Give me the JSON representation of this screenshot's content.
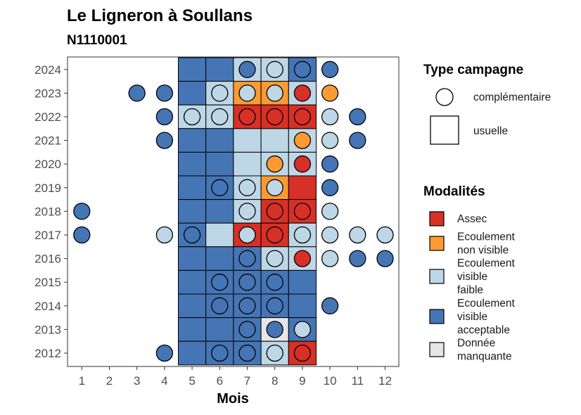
{
  "chart_data": {
    "type": "heatmap",
    "title": "Le Ligneron à Soullans",
    "subtitle": "N1110001",
    "xlabel": "Mois",
    "ylabel": "",
    "x_ticks": [
      "1",
      "2",
      "3",
      "4",
      "5",
      "6",
      "7",
      "8",
      "9",
      "10",
      "11",
      "12"
    ],
    "y_ticks": [
      "2012",
      "2013",
      "2014",
      "2015",
      "2016",
      "2017",
      "2018",
      "2019",
      "2020",
      "2021",
      "2022",
      "2023",
      "2024"
    ],
    "grid": false,
    "colors": {
      "assec": "#d73027",
      "non_visible": "#fd9a32",
      "faible": "#bed7e6",
      "acceptable": "#4575b4",
      "manquante": "#e6e6e6"
    },
    "legend": {
      "type_title": "Type campagne",
      "type_items": [
        {
          "key": "complementaire",
          "label": "complémentaire",
          "shape": "circle"
        },
        {
          "key": "usuelle",
          "label": "usuelle",
          "shape": "square"
        }
      ],
      "mod_title": "Modalités",
      "mod_items": [
        {
          "key": "assec",
          "lines": [
            "Assec"
          ]
        },
        {
          "key": "non_visible",
          "lines": [
            "Ecoulement",
            "non visible"
          ]
        },
        {
          "key": "faible",
          "lines": [
            "Ecoulement",
            "visible",
            "faible"
          ]
        },
        {
          "key": "acceptable",
          "lines": [
            "Ecoulement",
            "visible",
            "acceptable"
          ]
        },
        {
          "key": "manquante",
          "lines": [
            "Donnée",
            "manquante"
          ]
        }
      ],
      "placement": "right"
    },
    "usuelle": [
      {
        "year": 2024,
        "months": {
          "5": "acceptable",
          "6": "acceptable",
          "7": "faible",
          "8": "faible",
          "9": "acceptable"
        }
      },
      {
        "year": 2023,
        "months": {
          "5": "acceptable",
          "6": "faible",
          "7": "non_visible",
          "8": "non_visible",
          "9": "faible"
        }
      },
      {
        "year": 2022,
        "months": {
          "5": "faible",
          "6": "faible",
          "7": "assec",
          "8": "assec",
          "9": "assec"
        }
      },
      {
        "year": 2021,
        "months": {
          "5": "acceptable",
          "6": "acceptable",
          "7": "faible",
          "8": "faible",
          "9": "faible"
        }
      },
      {
        "year": 2020,
        "months": {
          "5": "acceptable",
          "6": "acceptable",
          "7": "faible",
          "8": "faible",
          "9": "faible"
        }
      },
      {
        "year": 2019,
        "months": {
          "5": "acceptable",
          "6": "acceptable",
          "7": "faible",
          "8": "non_visible",
          "9": "assec"
        }
      },
      {
        "year": 2018,
        "months": {
          "5": "acceptable",
          "6": "acceptable",
          "7": "faible",
          "8": "assec",
          "9": "assec"
        }
      },
      {
        "year": 2017,
        "months": {
          "5": "acceptable",
          "6": "faible",
          "7": "assec",
          "8": "assec",
          "9": "faible"
        }
      },
      {
        "year": 2016,
        "months": {
          "5": "acceptable",
          "6": "acceptable",
          "7": "acceptable",
          "8": "faible",
          "9": "faible"
        }
      },
      {
        "year": 2015,
        "months": {
          "5": "acceptable",
          "6": "acceptable",
          "7": "acceptable",
          "8": "acceptable",
          "9": "acceptable"
        }
      },
      {
        "year": 2014,
        "months": {
          "5": "acceptable",
          "6": "acceptable",
          "7": "acceptable",
          "8": "acceptable",
          "9": "acceptable"
        }
      },
      {
        "year": 2013,
        "months": {
          "5": "acceptable",
          "6": "acceptable",
          "7": "acceptable",
          "8": "manquante",
          "9": "acceptable"
        }
      },
      {
        "year": 2012,
        "months": {
          "5": "acceptable",
          "6": "acceptable",
          "7": "acceptable",
          "8": "faible",
          "9": "assec"
        }
      }
    ],
    "complementaire": [
      {
        "year": 2024,
        "month": 7,
        "mod": "acceptable"
      },
      {
        "year": 2024,
        "month": 8,
        "mod": "faible"
      },
      {
        "year": 2024,
        "month": 9,
        "mod": "acceptable"
      },
      {
        "year": 2024,
        "month": 10,
        "mod": "acceptable"
      },
      {
        "year": 2023,
        "month": 3,
        "mod": "acceptable"
      },
      {
        "year": 2023,
        "month": 4,
        "mod": "acceptable"
      },
      {
        "year": 2023,
        "month": 6,
        "mod": "faible"
      },
      {
        "year": 2023,
        "month": 7,
        "mod": "faible"
      },
      {
        "year": 2023,
        "month": 8,
        "mod": "faible"
      },
      {
        "year": 2023,
        "month": 9,
        "mod": "assec"
      },
      {
        "year": 2023,
        "month": 10,
        "mod": "non_visible"
      },
      {
        "year": 2022,
        "month": 4,
        "mod": "acceptable"
      },
      {
        "year": 2022,
        "month": 5,
        "mod": "faible"
      },
      {
        "year": 2022,
        "month": 6,
        "mod": "faible"
      },
      {
        "year": 2022,
        "month": 7,
        "mod": "assec"
      },
      {
        "year": 2022,
        "month": 8,
        "mod": "assec"
      },
      {
        "year": 2022,
        "month": 9,
        "mod": "assec"
      },
      {
        "year": 2022,
        "month": 10,
        "mod": "faible"
      },
      {
        "year": 2022,
        "month": 11,
        "mod": "acceptable"
      },
      {
        "year": 2021,
        "month": 4,
        "mod": "acceptable"
      },
      {
        "year": 2021,
        "month": 9,
        "mod": "non_visible"
      },
      {
        "year": 2021,
        "month": 10,
        "mod": "faible"
      },
      {
        "year": 2021,
        "month": 11,
        "mod": "acceptable"
      },
      {
        "year": 2020,
        "month": 8,
        "mod": "non_visible"
      },
      {
        "year": 2020,
        "month": 9,
        "mod": "assec"
      },
      {
        "year": 2020,
        "month": 10,
        "mod": "acceptable"
      },
      {
        "year": 2019,
        "month": 6,
        "mod": "acceptable"
      },
      {
        "year": 2019,
        "month": 7,
        "mod": "faible"
      },
      {
        "year": 2019,
        "month": 8,
        "mod": "faible"
      },
      {
        "year": 2019,
        "month": 10,
        "mod": "acceptable"
      },
      {
        "year": 2018,
        "month": 1,
        "mod": "acceptable"
      },
      {
        "year": 2018,
        "month": 7,
        "mod": "faible"
      },
      {
        "year": 2018,
        "month": 8,
        "mod": "assec"
      },
      {
        "year": 2018,
        "month": 9,
        "mod": "assec"
      },
      {
        "year": 2018,
        "month": 10,
        "mod": "faible"
      },
      {
        "year": 2017,
        "month": 1,
        "mod": "acceptable"
      },
      {
        "year": 2017,
        "month": 4,
        "mod": "faible"
      },
      {
        "year": 2017,
        "month": 5,
        "mod": "acceptable"
      },
      {
        "year": 2017,
        "month": 7,
        "mod": "faible"
      },
      {
        "year": 2017,
        "month": 8,
        "mod": "assec"
      },
      {
        "year": 2017,
        "month": 9,
        "mod": "faible"
      },
      {
        "year": 2017,
        "month": 10,
        "mod": "faible"
      },
      {
        "year": 2017,
        "month": 11,
        "mod": "faible"
      },
      {
        "year": 2017,
        "month": 12,
        "mod": "faible"
      },
      {
        "year": 2016,
        "month": 7,
        "mod": "acceptable"
      },
      {
        "year": 2016,
        "month": 8,
        "mod": "faible"
      },
      {
        "year": 2016,
        "month": 9,
        "mod": "assec"
      },
      {
        "year": 2016,
        "month": 10,
        "mod": "faible"
      },
      {
        "year": 2016,
        "month": 11,
        "mod": "acceptable"
      },
      {
        "year": 2016,
        "month": 12,
        "mod": "acceptable"
      },
      {
        "year": 2015,
        "month": 6,
        "mod": "acceptable"
      },
      {
        "year": 2015,
        "month": 7,
        "mod": "acceptable"
      },
      {
        "year": 2015,
        "month": 8,
        "mod": "acceptable"
      },
      {
        "year": 2014,
        "month": 6,
        "mod": "acceptable"
      },
      {
        "year": 2014,
        "month": 7,
        "mod": "acceptable"
      },
      {
        "year": 2014,
        "month": 8,
        "mod": "acceptable"
      },
      {
        "year": 2014,
        "month": 10,
        "mod": "acceptable"
      },
      {
        "year": 2013,
        "month": 7,
        "mod": "acceptable"
      },
      {
        "year": 2013,
        "month": 8,
        "mod": "acceptable"
      },
      {
        "year": 2013,
        "month": 9,
        "mod": "faible"
      },
      {
        "year": 2012,
        "month": 4,
        "mod": "acceptable"
      },
      {
        "year": 2012,
        "month": 6,
        "mod": "acceptable"
      },
      {
        "year": 2012,
        "month": 7,
        "mod": "acceptable"
      },
      {
        "year": 2012,
        "month": 8,
        "mod": "faible"
      },
      {
        "year": 2012,
        "month": 9,
        "mod": "assec"
      }
    ]
  }
}
